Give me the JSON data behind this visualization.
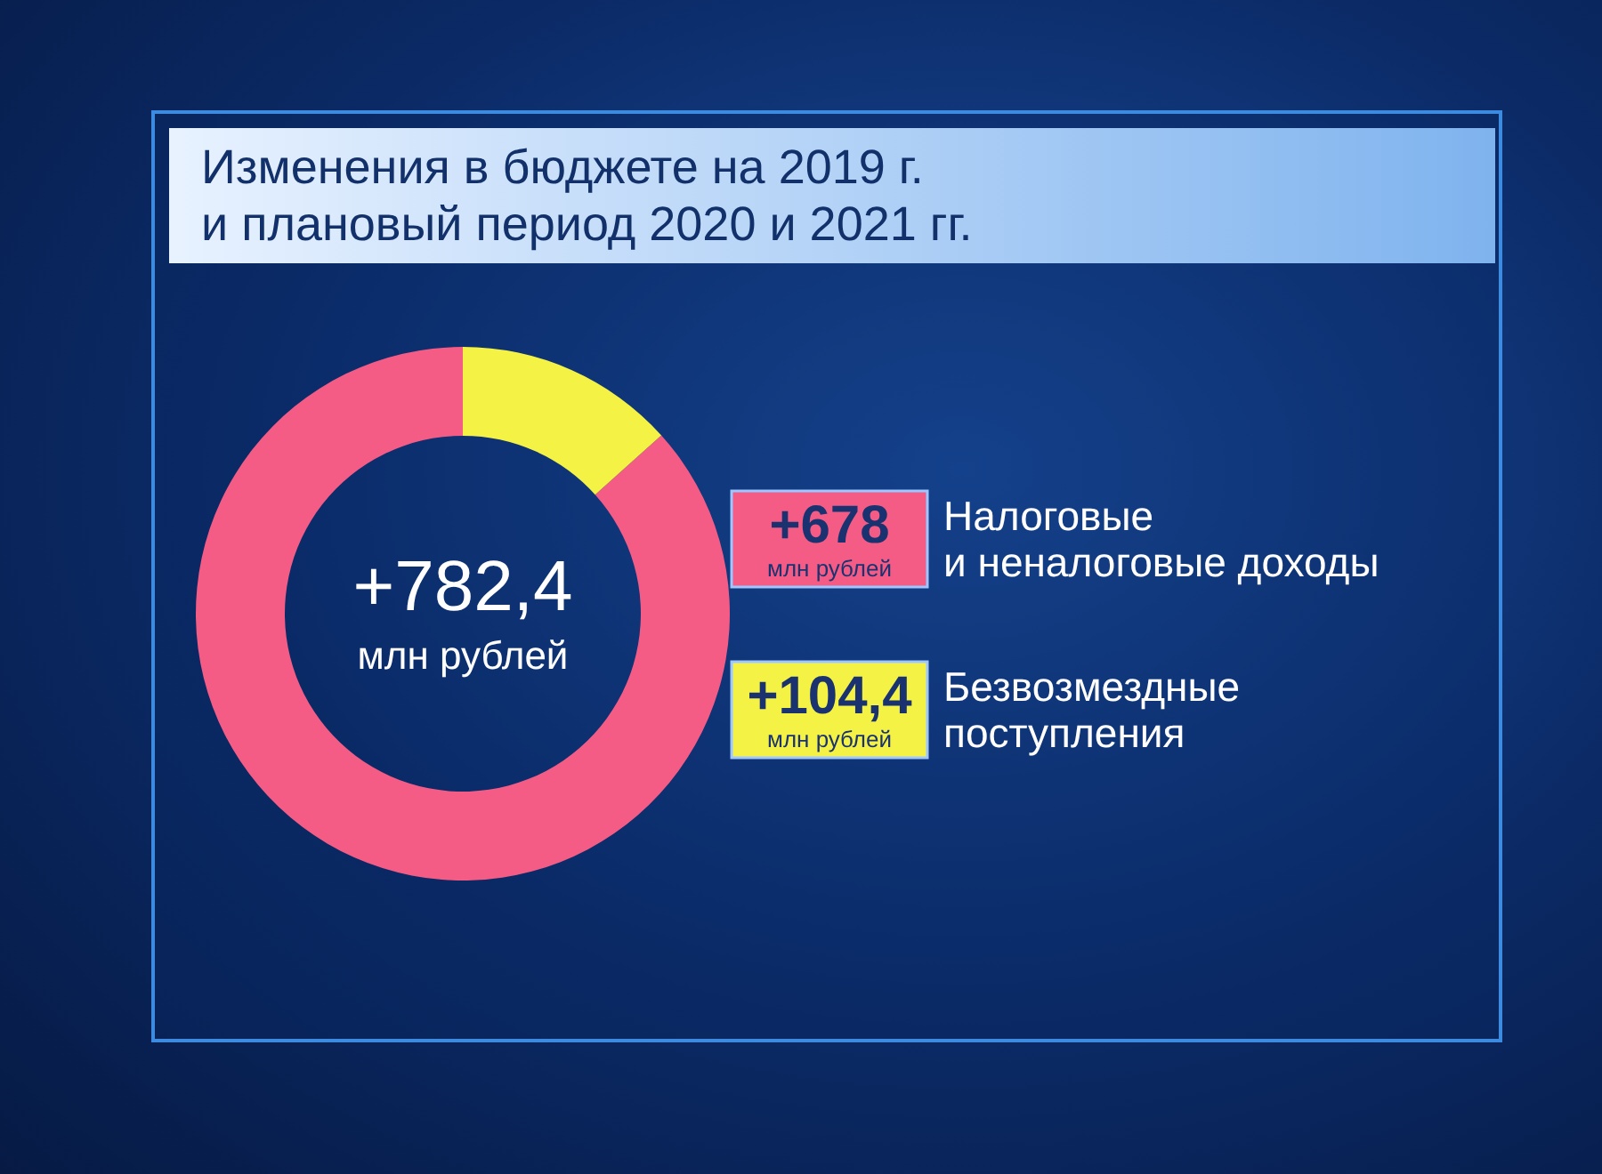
{
  "chart_data": {
    "type": "donut",
    "title": "Изменения в бюджете на 2019 г.\nи плановый период 2020 и 2021 гг.",
    "categories": [
      "Налоговые\nи неналоговые доходы",
      "Безвозмездные\nпоступления"
    ],
    "values": [
      678,
      104.4
    ],
    "colors": [
      "#f45c86",
      "#f4f244"
    ],
    "value_labels": [
      "+678\nмлн рублей",
      "+104,4\nмлн рублей"
    ],
    "annotations": [
      "+782,4\nмлн рублей"
    ],
    "legend": "right"
  }
}
